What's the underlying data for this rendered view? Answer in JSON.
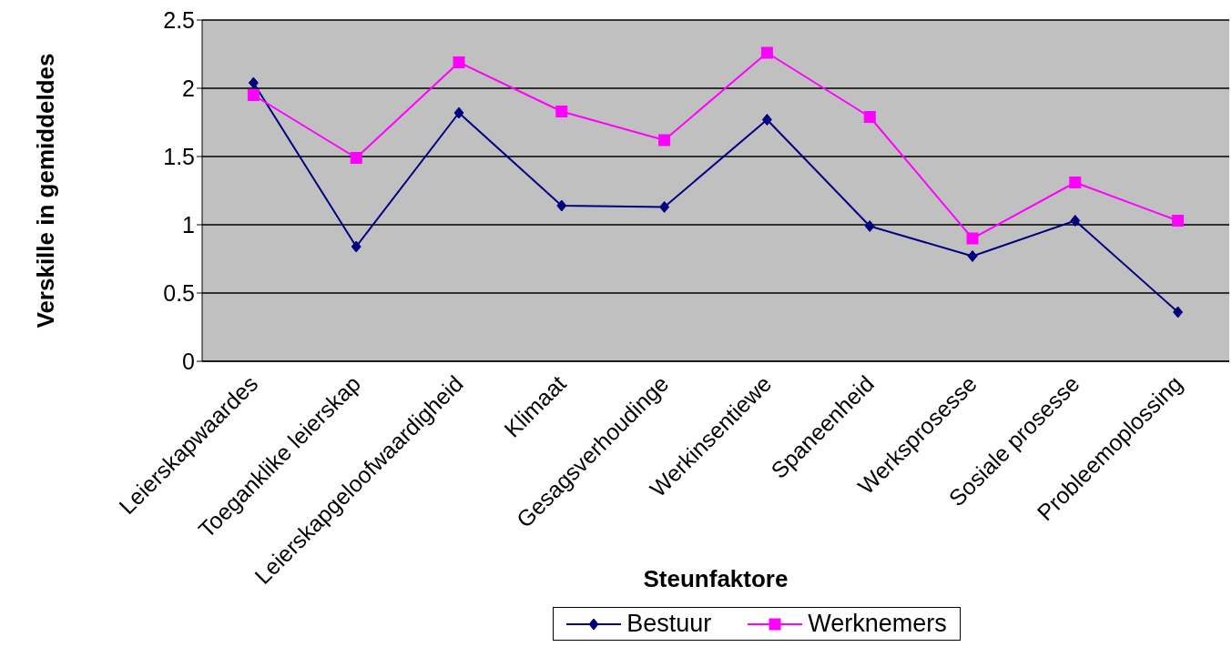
{
  "chart_data": {
    "type": "line",
    "xlabel": "Steunfaktore",
    "ylabel": "Verskille in gemiddeldes",
    "categories": [
      "Leierskapwaardes",
      "Toeganklike leierskap",
      "Leierskapgeloofwaardigheid",
      "Klimaat",
      "Gesagsverhoudinge",
      "Werkinsentiewe",
      "Spaneenheid",
      "Werksprosesse",
      "Sosiale prosesse",
      "Probleemoplossing"
    ],
    "series": [
      {
        "name": "Bestuur",
        "color": "#000080",
        "marker": "diamond",
        "values": [
          2.04,
          0.84,
          1.82,
          1.14,
          1.13,
          1.77,
          0.99,
          0.77,
          1.03,
          0.36
        ]
      },
      {
        "name": "Werknemers",
        "color": "#ff00ff",
        "marker": "square",
        "values": [
          1.95,
          1.49,
          2.19,
          1.83,
          1.62,
          2.26,
          1.79,
          0.9,
          1.31,
          1.03
        ]
      }
    ],
    "ylim": [
      0,
      2.5
    ],
    "yticks": [
      0,
      0.5,
      1,
      1.5,
      2,
      2.5
    ],
    "grid": "y",
    "legend": "bottom"
  }
}
